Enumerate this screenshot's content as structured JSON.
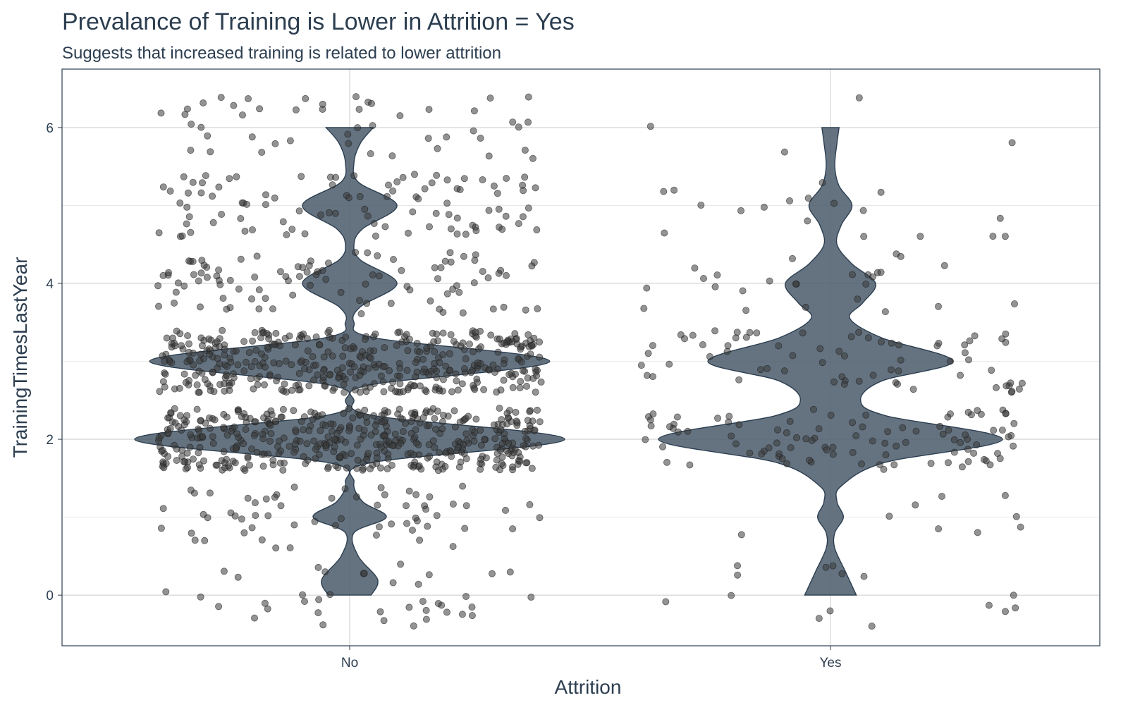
{
  "chart_data": {
    "type": "violin",
    "title": "Prevalance of Training is Lower in Attrition = Yes",
    "subtitle": "Suggests that increased training is related to lower attrition",
    "xlabel": "Attrition",
    "ylabel": "TrainingTimesLastYear",
    "categories": [
      "No",
      "Yes"
    ],
    "ylim": [
      -0.65,
      6.75
    ],
    "yticks": [
      0,
      2,
      4,
      6
    ],
    "grid": true,
    "fill_color": "#4a5a6b",
    "point_color": "#3a3a3a",
    "groups": [
      {
        "name": "No",
        "counts": {
          "0": 39,
          "1": 62,
          "2": 449,
          "3": 409,
          "4": 97,
          "5": 97,
          "6": 48
        },
        "density_profile": [
          [
            0,
            0.1
          ],
          [
            0.2,
            0.13
          ],
          [
            0.5,
            0.04
          ],
          [
            0.8,
            0.02
          ],
          [
            1,
            0.17
          ],
          [
            1.2,
            0.06
          ],
          [
            1.45,
            0.02
          ],
          [
            1.7,
            0.1
          ],
          [
            2,
            1.0
          ],
          [
            2.3,
            0.12
          ],
          [
            2.5,
            0.02
          ],
          [
            2.7,
            0.1
          ],
          [
            3,
            0.93
          ],
          [
            3.3,
            0.12
          ],
          [
            3.5,
            0.02
          ],
          [
            3.7,
            0.05
          ],
          [
            4,
            0.22
          ],
          [
            4.3,
            0.05
          ],
          [
            4.5,
            0.02
          ],
          [
            4.7,
            0.06
          ],
          [
            5,
            0.22
          ],
          [
            5.3,
            0.04
          ],
          [
            5.55,
            0.02
          ],
          [
            5.8,
            0.05
          ],
          [
            6,
            0.11
          ]
        ]
      },
      {
        "name": "Yes",
        "counts": {
          "0": 15,
          "1": 9,
          "2": 98,
          "3": 69,
          "4": 26,
          "5": 18,
          "6": 4
        },
        "density_profile": [
          [
            0,
            0.12
          ],
          [
            0.3,
            0.07
          ],
          [
            0.6,
            0.02
          ],
          [
            0.8,
            0.02
          ],
          [
            1,
            0.06
          ],
          [
            1.2,
            0.03
          ],
          [
            1.4,
            0.05
          ],
          [
            1.7,
            0.25
          ],
          [
            2,
            0.8
          ],
          [
            2.3,
            0.26
          ],
          [
            2.5,
            0.14
          ],
          [
            2.75,
            0.24
          ],
          [
            3,
            0.57
          ],
          [
            3.3,
            0.24
          ],
          [
            3.55,
            0.09
          ],
          [
            3.75,
            0.15
          ],
          [
            4,
            0.21
          ],
          [
            4.25,
            0.1
          ],
          [
            4.5,
            0.03
          ],
          [
            4.75,
            0.05
          ],
          [
            5,
            0.1
          ],
          [
            5.25,
            0.04
          ],
          [
            5.5,
            0.02
          ],
          [
            5.8,
            0.03
          ],
          [
            6,
            0.04
          ]
        ]
      }
    ]
  }
}
